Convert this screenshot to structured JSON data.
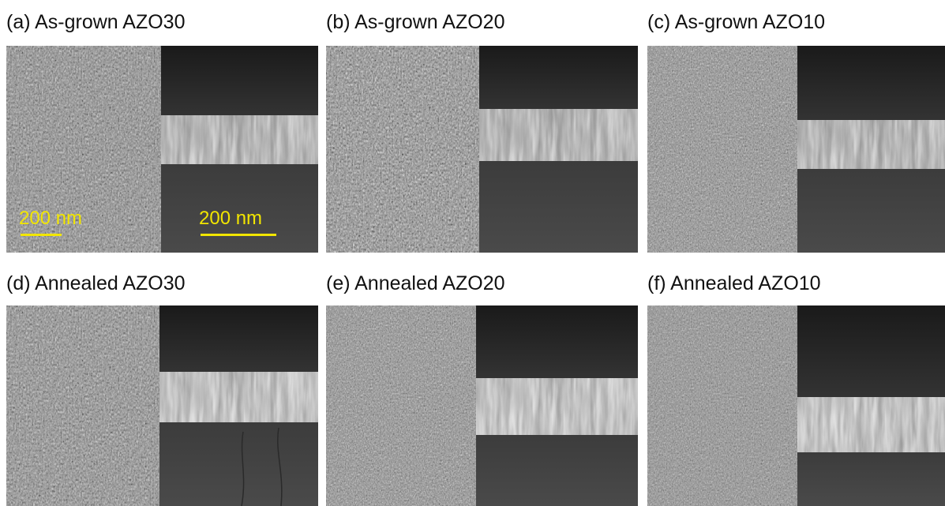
{
  "panels": [
    {
      "title": "(a) As-grown AZO30"
    },
    {
      "title": "(b) As-grown AZO20"
    },
    {
      "title": "(c) As-grown AZO10"
    },
    {
      "title": "(d) Annealed AZO30"
    },
    {
      "title": "(e) Annealed AZO20"
    },
    {
      "title": "(f) Annealed AZO10"
    }
  ],
  "scale_bars": {
    "top_view": "200 nm",
    "cross_section": "200 nm"
  }
}
